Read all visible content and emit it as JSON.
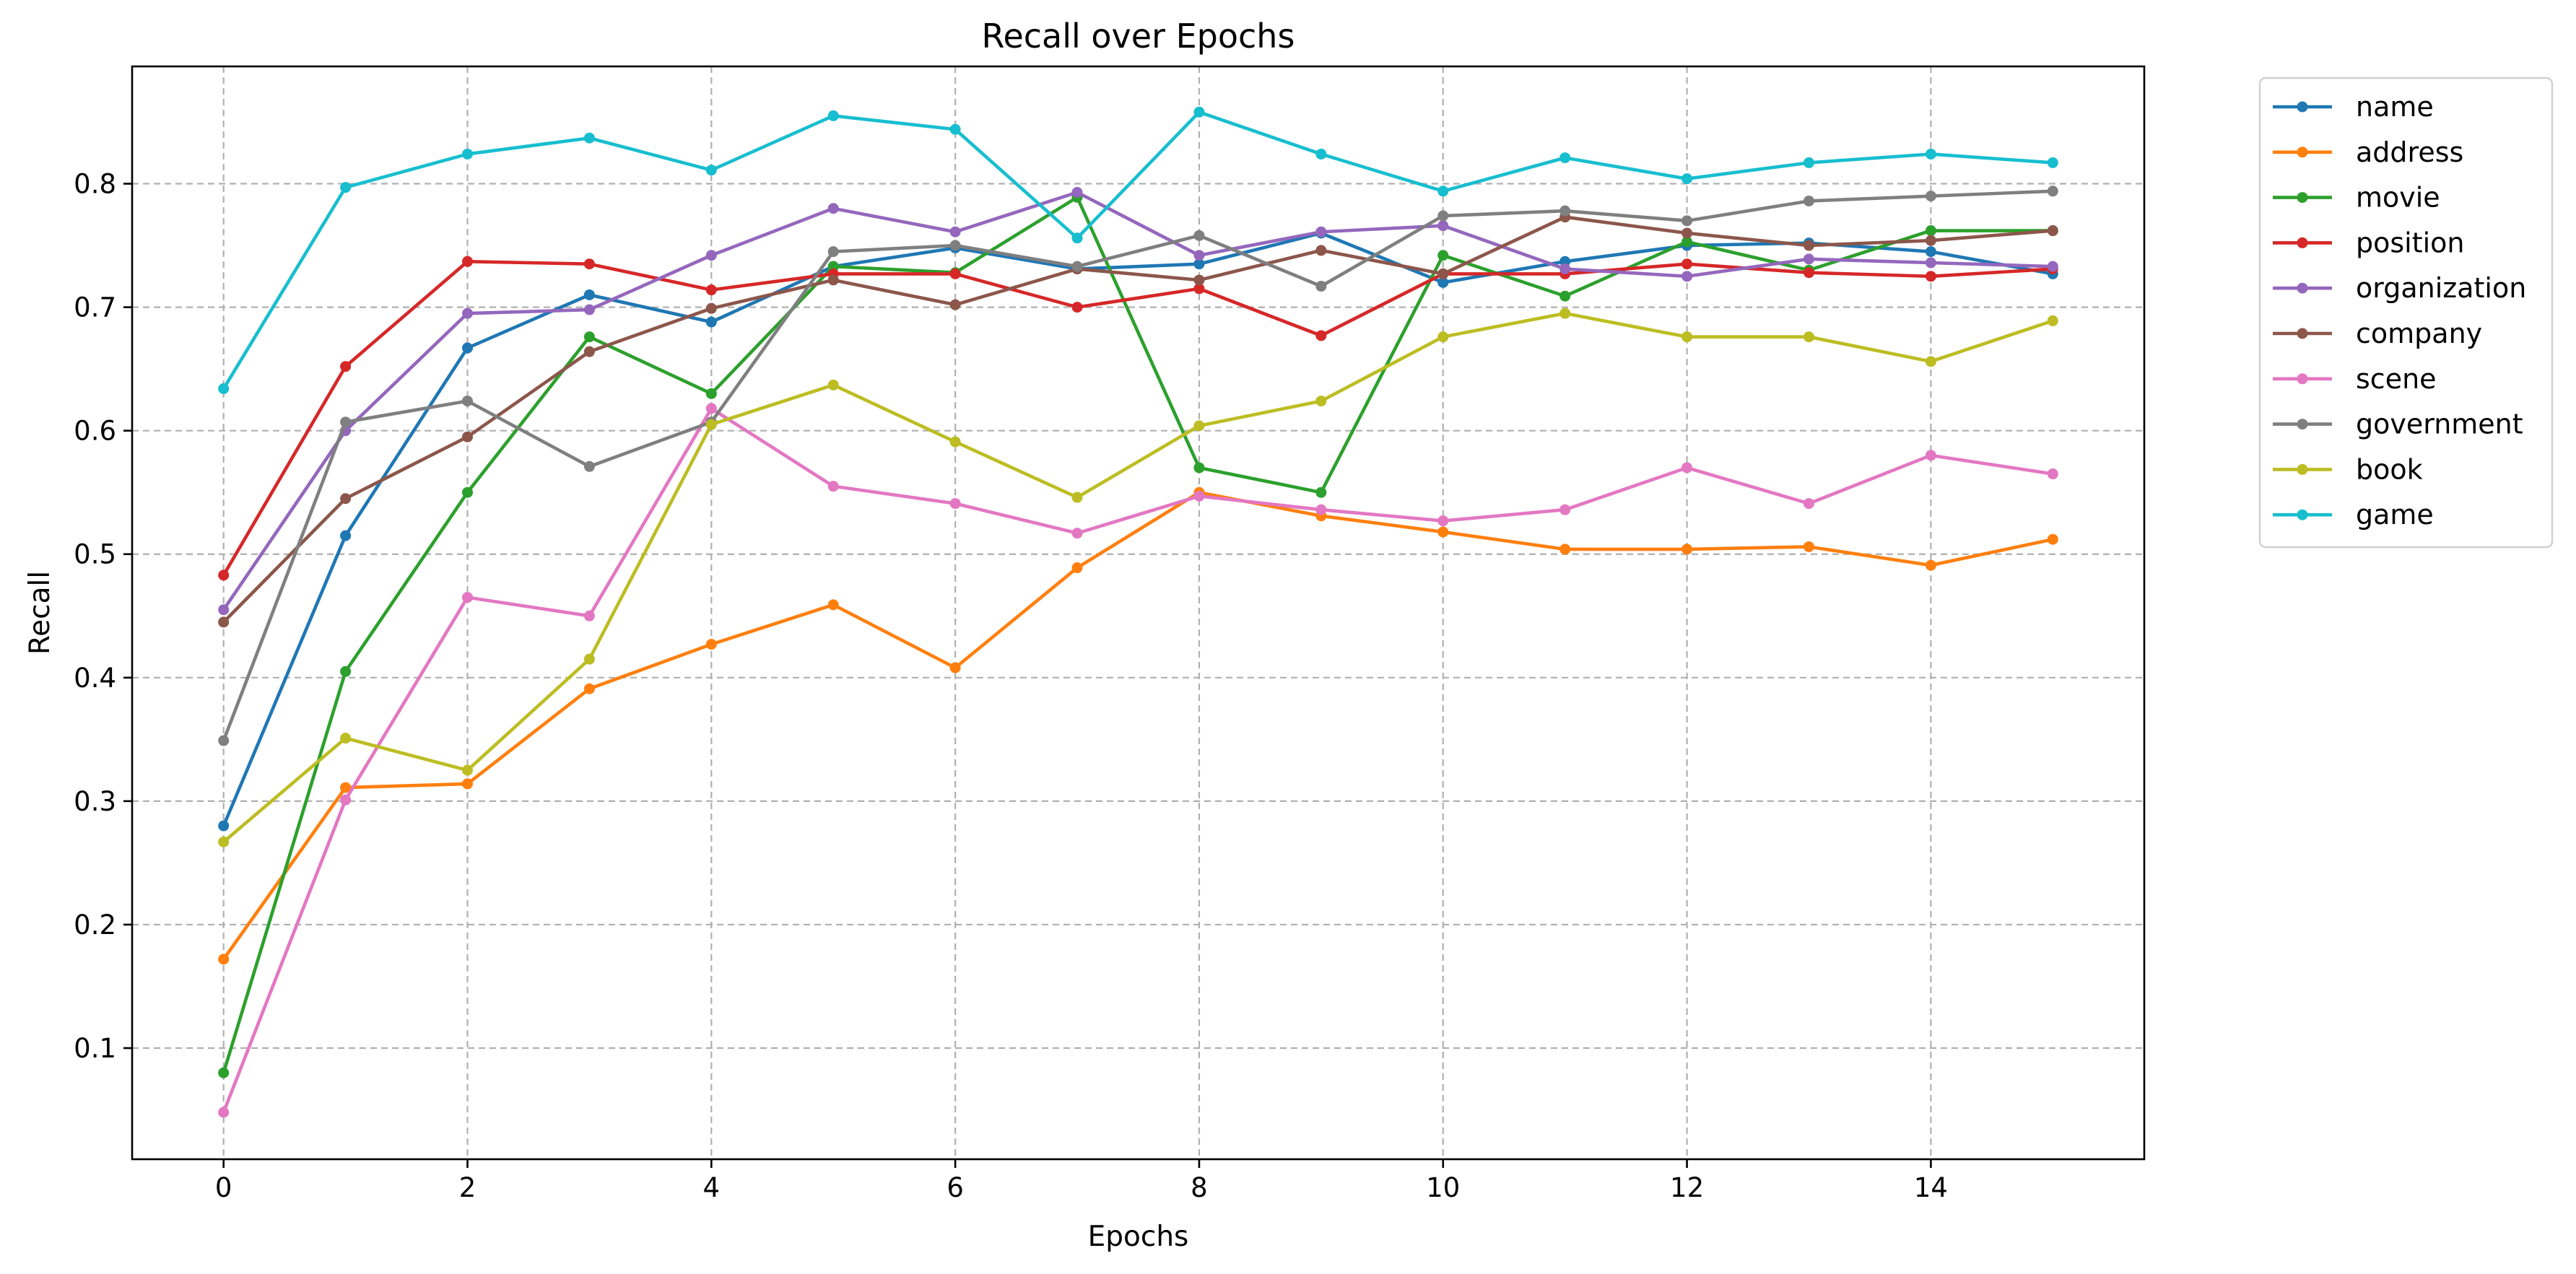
{
  "chart_data": {
    "type": "line",
    "title": "Recall over Epochs",
    "xlabel": "Epochs",
    "ylabel": "Recall",
    "x": [
      0,
      1,
      2,
      3,
      4,
      5,
      6,
      7,
      8,
      9,
      10,
      11,
      12,
      13,
      14,
      15
    ],
    "xlim": [
      -0.75,
      15.75
    ],
    "ylim": [
      0.01,
      0.895
    ],
    "xticks": [
      0,
      2,
      4,
      6,
      8,
      10,
      12,
      14
    ],
    "yticks": [
      0.1,
      0.2,
      0.3,
      0.4,
      0.5,
      0.6,
      0.7,
      0.8
    ],
    "grid": true,
    "legend_position": "outside-right-top",
    "series": [
      {
        "name": "name",
        "color": "#1f77b4",
        "values": [
          0.28,
          0.515,
          0.667,
          0.71,
          0.688,
          0.733,
          0.748,
          0.731,
          0.735,
          0.76,
          0.72,
          0.737,
          0.75,
          0.752,
          0.745,
          0.727
        ]
      },
      {
        "name": "address",
        "color": "#ff7f0e",
        "values": [
          0.172,
          0.311,
          0.314,
          0.391,
          0.427,
          0.459,
          0.408,
          0.489,
          0.55,
          0.531,
          0.518,
          0.504,
          0.504,
          0.506,
          0.491,
          0.512
        ]
      },
      {
        "name": "movie",
        "color": "#2ca02c",
        "values": [
          0.08,
          0.405,
          0.55,
          0.676,
          0.63,
          0.733,
          0.728,
          0.789,
          0.57,
          0.55,
          0.742,
          0.709,
          0.753,
          0.73,
          0.762,
          0.762
        ]
      },
      {
        "name": "position",
        "color": "#d62728",
        "values": [
          0.483,
          0.652,
          0.737,
          0.735,
          0.714,
          0.727,
          0.727,
          0.7,
          0.715,
          0.677,
          0.727,
          0.727,
          0.735,
          0.728,
          0.725,
          0.731
        ]
      },
      {
        "name": "organization",
        "color": "#9467bd",
        "values": [
          0.455,
          0.6,
          0.695,
          0.698,
          0.742,
          0.78,
          0.761,
          0.793,
          0.742,
          0.761,
          0.766,
          0.731,
          0.725,
          0.739,
          0.736,
          0.733
        ]
      },
      {
        "name": "company",
        "color": "#8c564b",
        "values": [
          0.445,
          0.545,
          0.595,
          0.664,
          0.699,
          0.722,
          0.702,
          0.731,
          0.722,
          0.746,
          0.727,
          0.773,
          0.76,
          0.75,
          0.754,
          0.762
        ]
      },
      {
        "name": "scene",
        "color": "#e377c2",
        "values": [
          0.048,
          0.301,
          0.465,
          0.45,
          0.618,
          0.555,
          0.541,
          0.517,
          0.547,
          0.536,
          0.527,
          0.536,
          0.57,
          0.541,
          0.58,
          0.565
        ]
      },
      {
        "name": "government",
        "color": "#7f7f7f",
        "values": [
          0.349,
          0.607,
          0.624,
          0.571,
          0.607,
          0.745,
          0.75,
          0.733,
          0.758,
          0.717,
          0.774,
          0.778,
          0.77,
          0.786,
          0.79,
          0.794
        ]
      },
      {
        "name": "book",
        "color": "#bcbd22",
        "values": [
          0.267,
          0.351,
          0.325,
          0.415,
          0.605,
          0.637,
          0.591,
          0.546,
          0.604,
          0.624,
          0.676,
          0.695,
          0.676,
          0.676,
          0.656,
          0.689
        ]
      },
      {
        "name": "game",
        "color": "#17becf",
        "values": [
          0.634,
          0.797,
          0.824,
          0.837,
          0.811,
          0.855,
          0.844,
          0.756,
          0.858,
          0.824,
          0.794,
          0.821,
          0.804,
          0.817,
          0.824,
          0.817
        ]
      }
    ]
  }
}
